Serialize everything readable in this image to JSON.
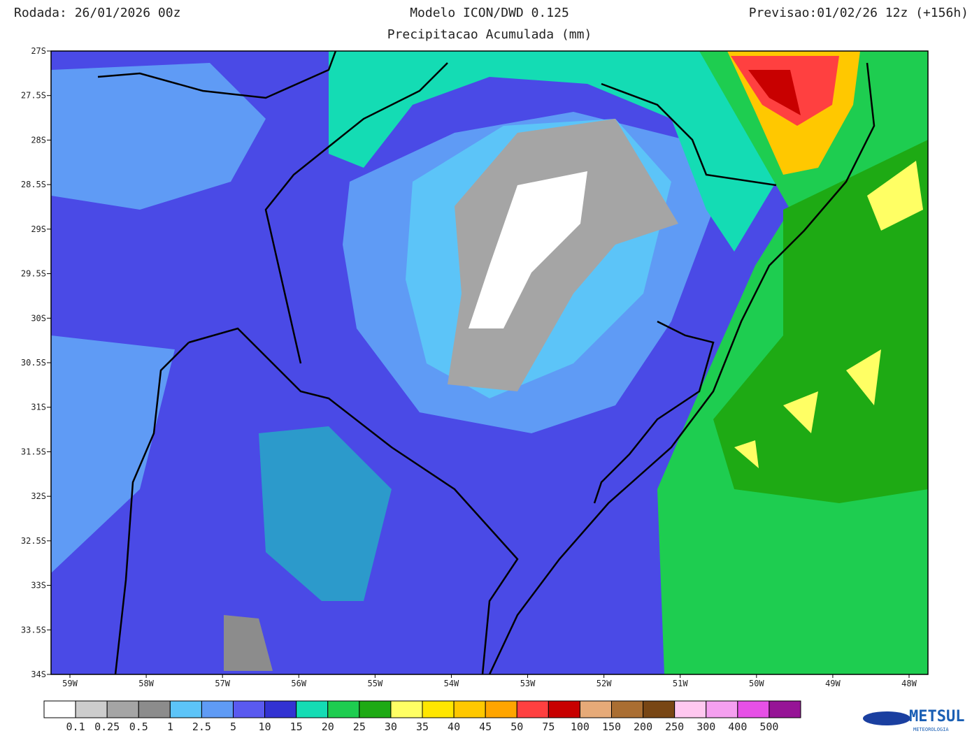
{
  "header": {
    "left": "Rodada: 26/01/2026 00z",
    "center_title": "Modelo ICON/DWD 0.125",
    "center_subtitle": "Precipitacao Acumulada (mm)",
    "right": "Previsao:01/02/26 12z (+156h)"
  },
  "map": {
    "lat_labels": [
      "27S",
      "27.5S",
      "28S",
      "28.5S",
      "29S",
      "29.5S",
      "30S",
      "30.5S",
      "31S",
      "31.5S",
      "32S",
      "32.5S",
      "33S",
      "33.5S",
      "34S"
    ],
    "lon_labels": [
      "59W",
      "58W",
      "57W",
      "56W",
      "55W",
      "54W",
      "53W",
      "52W",
      "51W",
      "50W",
      "49W",
      "48W"
    ]
  },
  "colorbar": {
    "colors": [
      "#ffffff",
      "#cdcdcd",
      "#a5a5a5",
      "#8c8c8c",
      "#5cc4f8",
      "#5f9bf5",
      "#5a5af0",
      "#3232d2",
      "#14dcb4",
      "#1ecd50",
      "#1eaa14",
      "#ffff64",
      "#ffe600",
      "#ffc800",
      "#ffa500",
      "#ff4040",
      "#c80000",
      "#e6aa78",
      "#aa6e32",
      "#784614",
      "#ffc8f0",
      "#f5a0f0",
      "#e650e6",
      "#961496"
    ],
    "labels": [
      "0.1",
      "0.25",
      "0.5",
      "1",
      "2.5",
      "5",
      "10",
      "15",
      "20",
      "25",
      "30",
      "35",
      "40",
      "45",
      "50",
      "75",
      "100",
      "150",
      "200",
      "250",
      "300",
      "400",
      "500"
    ]
  },
  "logo": {
    "name": "METSUL",
    "tagline": "METEOROLOGIA"
  }
}
